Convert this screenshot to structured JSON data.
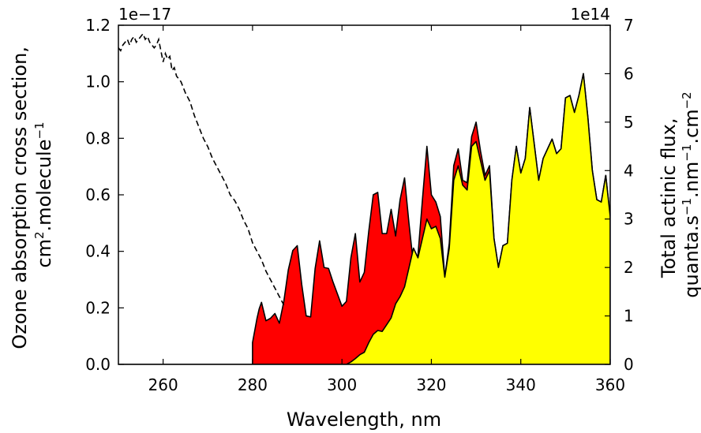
{
  "chart_data": {
    "type": "area",
    "xlabel": "Wavelength, nm",
    "ylabel_left": {
      "line1": "Ozone absorption cross section,",
      "line2_pre": "cm",
      "line2_sup1": "2",
      "line2_mid": ".molecule",
      "line2_sup2": "−1"
    },
    "ylabel_right": {
      "line1": "Total actinic flux,",
      "line2_pre": "quanta.s",
      "line2_sup1": "−1",
      "line2_mid1": ".nm",
      "line2_sup2": "−1",
      "line2_mid2": ".cm",
      "line2_sup3": "−2"
    },
    "left_offset_label": "1e−17",
    "right_offset_label": "1e14",
    "xlim": [
      250,
      360
    ],
    "ylim_left": [
      0,
      1.2
    ],
    "ylim_right": [
      0,
      7
    ],
    "x_ticks": [
      "260",
      "280",
      "300",
      "320",
      "340",
      "360"
    ],
    "x_tick_values": [
      260,
      280,
      300,
      320,
      340,
      360
    ],
    "left_ticks": [
      "0.0",
      "0.2",
      "0.4",
      "0.6",
      "0.8",
      "1.0",
      "1.2"
    ],
    "left_tick_values": [
      0,
      0.2,
      0.4,
      0.6,
      0.8,
      1.0,
      1.2
    ],
    "right_ticks": [
      "0",
      "1",
      "2",
      "3",
      "4",
      "5",
      "6",
      "7"
    ],
    "right_tick_values": [
      0,
      1,
      2,
      3,
      4,
      5,
      6,
      7
    ],
    "grid": false,
    "series": [
      {
        "style": "dashed-line",
        "axis": "left",
        "color": "#000000",
        "x": [
          250,
          250.5,
          251,
          251.5,
          252,
          252.5,
          253,
          253.5,
          254,
          254.5,
          255,
          255.5,
          256,
          256.5,
          257,
          257.5,
          258,
          258.5,
          259,
          259.5,
          260,
          260.5,
          261,
          261.5,
          262,
          262.5,
          263,
          264,
          265,
          266,
          267,
          268,
          269,
          270,
          271,
          272,
          273,
          274,
          275,
          276,
          277,
          278,
          279,
          280,
          281,
          282,
          283,
          284,
          285,
          286,
          287
        ],
        "values": [
          1.12,
          1.11,
          1.13,
          1.14,
          1.15,
          1.13,
          1.15,
          1.16,
          1.14,
          1.15,
          1.16,
          1.17,
          1.15,
          1.16,
          1.14,
          1.13,
          1.12,
          1.13,
          1.15,
          1.11,
          1.07,
          1.1,
          1.08,
          1.09,
          1.04,
          1.05,
          1.02,
          1.0,
          0.96,
          0.93,
          0.88,
          0.84,
          0.8,
          0.77,
          0.73,
          0.7,
          0.67,
          0.64,
          0.6,
          0.58,
          0.55,
          0.51,
          0.48,
          0.43,
          0.4,
          0.37,
          0.33,
          0.3,
          0.27,
          0.24,
          0.21
        ]
      },
      {
        "name": "",
        "style": "filled-area",
        "axis": "right",
        "color": "#ff0000",
        "x": [
          280,
          281,
          281.5,
          282,
          283,
          284,
          285,
          286,
          287,
          288,
          289,
          290,
          291,
          292,
          293,
          294,
          295,
          296,
          297,
          298,
          299,
          300,
          301,
          302,
          303,
          304,
          305,
          306,
          307,
          308,
          309,
          310,
          311,
          312,
          313,
          314,
          315,
          316,
          317,
          318,
          319,
          320,
          321,
          322,
          323,
          324,
          325,
          326,
          327,
          328,
          329,
          330,
          331,
          332,
          333,
          334,
          335,
          336,
          337,
          338,
          339,
          340,
          341,
          342,
          343,
          344,
          345,
          346,
          347,
          348,
          349,
          350,
          351,
          352,
          353,
          354,
          355,
          356,
          357,
          358,
          359,
          360
        ],
        "values": [
          0.45,
          0.95,
          1.15,
          1.28,
          0.9,
          0.95,
          1.05,
          0.85,
          1.3,
          1.95,
          2.35,
          2.45,
          1.65,
          1.0,
          0.98,
          1.98,
          2.55,
          2.0,
          1.98,
          1.7,
          1.45,
          1.2,
          1.3,
          2.2,
          2.7,
          1.7,
          1.9,
          2.75,
          3.5,
          3.55,
          2.7,
          2.7,
          3.2,
          2.65,
          3.4,
          3.85,
          2.9,
          2.05,
          2.25,
          3.4,
          4.5,
          3.5,
          3.35,
          3.05,
          1.8,
          2.5,
          4.1,
          4.45,
          3.8,
          3.75,
          4.7,
          5.0,
          4.4,
          3.9,
          4.1,
          2.6,
          2.0,
          2.45,
          2.5,
          3.8,
          4.5,
          3.95,
          4.25,
          5.3,
          4.55,
          3.8,
          4.25,
          4.45,
          4.65,
          4.35,
          4.45,
          5.5,
          5.55,
          5.2,
          5.55,
          6.0,
          5.1,
          4.0,
          3.4,
          3.35,
          3.9,
          3.05
        ]
      },
      {
        "name": "",
        "style": "filled-area",
        "axis": "right",
        "color": "#ffff00",
        "x": [
          250,
          301,
          302,
          303,
          304,
          305,
          306,
          307,
          308,
          309,
          310,
          311,
          312,
          313,
          314,
          315,
          316,
          317,
          318,
          319,
          320,
          321,
          322,
          323,
          324,
          325,
          326,
          327,
          328,
          329,
          330,
          331,
          332,
          333,
          334,
          335,
          336,
          337,
          338,
          339,
          340,
          341,
          342,
          343,
          344,
          345,
          346,
          347,
          348,
          349,
          350,
          351,
          352,
          353,
          354,
          355,
          356,
          357,
          358,
          359,
          360
        ],
        "values": [
          0,
          0,
          0.05,
          0.12,
          0.2,
          0.25,
          0.45,
          0.62,
          0.7,
          0.68,
          0.82,
          0.96,
          1.25,
          1.4,
          1.6,
          2.0,
          2.4,
          2.2,
          2.6,
          3.0,
          2.8,
          2.85,
          2.6,
          1.8,
          2.4,
          3.8,
          4.1,
          3.7,
          3.6,
          4.5,
          4.6,
          4.2,
          3.8,
          4.0,
          2.6,
          2.0,
          2.45,
          2.5,
          3.8,
          4.5,
          3.95,
          4.25,
          5.3,
          4.55,
          3.8,
          4.25,
          4.45,
          4.65,
          4.35,
          4.45,
          5.5,
          5.55,
          5.2,
          5.55,
          6.0,
          5.1,
          4.0,
          3.4,
          3.35,
          3.9,
          3.05
        ]
      }
    ]
  }
}
